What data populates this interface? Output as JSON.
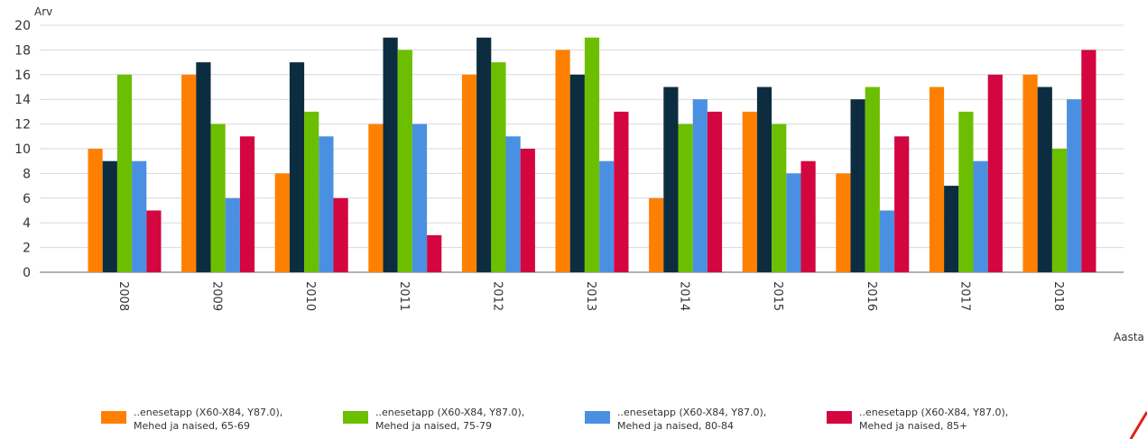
{
  "chart_data": {
    "type": "bar",
    "ylabel": "Arv",
    "xlabel": "Aasta",
    "ylim": [
      0,
      20
    ],
    "yticks": [
      0,
      2,
      4,
      6,
      8,
      10,
      12,
      14,
      16,
      18,
      20
    ],
    "grid": "horizontal",
    "legend_position": "bottom",
    "categories": [
      "2008",
      "2009",
      "2010",
      "2011",
      "2012",
      "2013",
      "2014",
      "2015",
      "2016",
      "2017",
      "2018"
    ],
    "series": [
      {
        "name_line1": "..enesetapp (X60-X84, Y87.0),",
        "name_line2": "Mehed ja naised, 65-69",
        "color": "#ff8000",
        "values": [
          10,
          16,
          8,
          12,
          16,
          18,
          6,
          13,
          8,
          15,
          16
        ]
      },
      {
        "name_line1": "",
        "name_line2": "",
        "color": "#0c2d40",
        "values": [
          9,
          17,
          17,
          19,
          19,
          16,
          15,
          15,
          14,
          7,
          15
        ]
      },
      {
        "name_line1": "..enesetapp (X60-X84, Y87.0),",
        "name_line2": "Mehed ja naised, 75-79",
        "color": "#6cbe00",
        "values": [
          16,
          12,
          13,
          18,
          17,
          19,
          12,
          12,
          15,
          13,
          10
        ]
      },
      {
        "name_line1": "..enesetapp (X60-X84, Y87.0),",
        "name_line2": "Mehed ja naised, 80-84",
        "color": "#4a90e2",
        "values": [
          9,
          6,
          11,
          12,
          11,
          9,
          14,
          8,
          5,
          9,
          14
        ]
      },
      {
        "name_line1": "..enesetapp (X60-X84, Y87.0),",
        "name_line2": "Mehed ja naised, 85+",
        "color": "#d3063f",
        "values": [
          5,
          11,
          6,
          3,
          10,
          13,
          13,
          9,
          11,
          16,
          18
        ]
      }
    ]
  },
  "legend": [
    {
      "line1": "..enesetapp (X60-X84, Y87.0),",
      "line2": "Mehed ja naised, 65-69",
      "color": "#ff8000"
    },
    {
      "line1": "..enesetapp (X60-X84, Y87.0),",
      "line2": "Mehed ja naised, 75-79",
      "color": "#6cbe00"
    },
    {
      "line1": "..enesetapp (X60-X84, Y87.0),",
      "line2": "Mehed ja naised, 80-84",
      "color": "#4a90e2"
    },
    {
      "line1": "..enesetapp (X60-X84, Y87.0),",
      "line2": "Mehed ja naised, 85+",
      "color": "#d3063f"
    }
  ]
}
